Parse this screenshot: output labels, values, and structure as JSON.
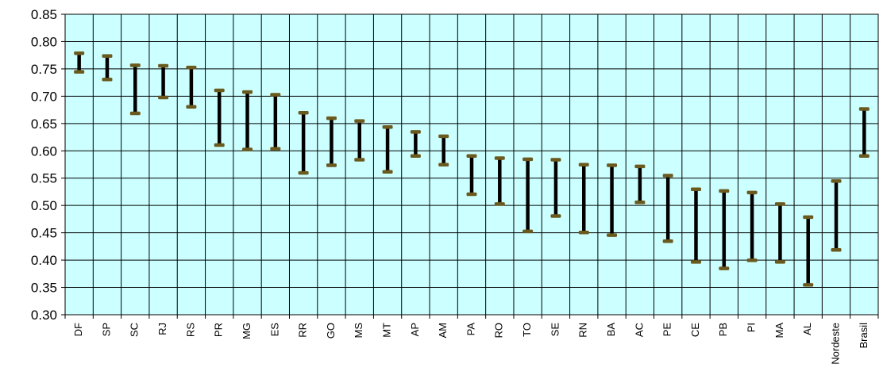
{
  "chart_data": {
    "type": "range-bar",
    "title": "",
    "xlabel": "",
    "ylabel": "",
    "ylim": [
      0.3,
      0.85
    ],
    "ytick_step": 0.05,
    "grid": true,
    "plot_background": "#ccffff",
    "bar_color": "#000000",
    "cap_color": "#6b5a1e",
    "categories": [
      "DF",
      "SP",
      "SC",
      "RJ",
      "RS",
      "PR",
      "MG",
      "ES",
      "RR",
      "GO",
      "MS",
      "MT",
      "AP",
      "AM",
      "PA",
      "RO",
      "TO",
      "SE",
      "RN",
      "BA",
      "AC",
      "PE",
      "CE",
      "PB",
      "PI",
      "MA",
      "AL",
      "Nordeste",
      "Brasil"
    ],
    "y_tick_labels": [
      "0.30",
      "0.35",
      "0.40",
      "0.45",
      "0.50",
      "0.55",
      "0.60",
      "0.65",
      "0.70",
      "0.75",
      "0.80",
      "0.85"
    ],
    "ranges": [
      {
        "low": 0.745,
        "high": 0.779
      },
      {
        "low": 0.731,
        "high": 0.774
      },
      {
        "low": 0.669,
        "high": 0.757
      },
      {
        "low": 0.698,
        "high": 0.756
      },
      {
        "low": 0.681,
        "high": 0.753
      },
      {
        "low": 0.611,
        "high": 0.711
      },
      {
        "low": 0.603,
        "high": 0.708
      },
      {
        "low": 0.604,
        "high": 0.703
      },
      {
        "low": 0.56,
        "high": 0.67
      },
      {
        "low": 0.574,
        "high": 0.66
      },
      {
        "low": 0.584,
        "high": 0.655
      },
      {
        "low": 0.562,
        "high": 0.644
      },
      {
        "low": 0.591,
        "high": 0.635
      },
      {
        "low": 0.575,
        "high": 0.627
      },
      {
        "low": 0.521,
        "high": 0.591
      },
      {
        "low": 0.503,
        "high": 0.587
      },
      {
        "low": 0.453,
        "high": 0.585
      },
      {
        "low": 0.481,
        "high": 0.584
      },
      {
        "low": 0.451,
        "high": 0.575
      },
      {
        "low": 0.446,
        "high": 0.574
      },
      {
        "low": 0.506,
        "high": 0.572
      },
      {
        "low": 0.435,
        "high": 0.555
      },
      {
        "low": 0.397,
        "high": 0.53
      },
      {
        "low": 0.385,
        "high": 0.527
      },
      {
        "low": 0.4,
        "high": 0.524
      },
      {
        "low": 0.397,
        "high": 0.503
      },
      {
        "low": 0.355,
        "high": 0.479
      },
      {
        "low": 0.419,
        "high": 0.545
      },
      {
        "low": 0.591,
        "high": 0.677
      }
    ]
  }
}
